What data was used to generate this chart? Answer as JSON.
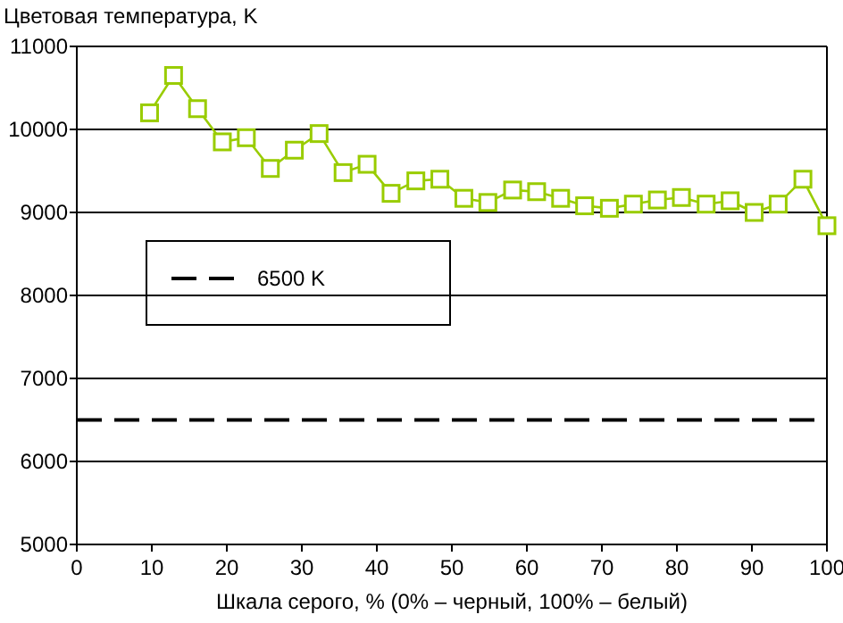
{
  "chart_data": {
    "type": "line",
    "ylabel": "Цветовая температура, K",
    "xlabel": "Шкала серого, % (0% – черный, 100% – белый)",
    "x": [
      9.7,
      12.9,
      16.1,
      19.4,
      22.6,
      25.8,
      29.0,
      32.3,
      35.5,
      38.7,
      41.9,
      45.2,
      48.4,
      51.6,
      54.8,
      58.1,
      61.3,
      64.5,
      67.7,
      71.0,
      74.2,
      77.4,
      80.6,
      83.9,
      87.1,
      90.3,
      93.5,
      96.8,
      100
    ],
    "series": [
      {
        "color": "#99cc00",
        "values": [
          10200,
          10650,
          10250,
          9850,
          9900,
          9530,
          9750,
          9950,
          9480,
          9580,
          9230,
          9380,
          9400,
          9170,
          9120,
          9270,
          9250,
          9170,
          9080,
          9050,
          9100,
          9150,
          9180,
          9100,
          9140,
          9000,
          9100,
          9400,
          8840
        ]
      }
    ],
    "xlim": [
      0,
      100
    ],
    "xticks": [
      0,
      10,
      20,
      30,
      40,
      50,
      60,
      70,
      80,
      90,
      100
    ],
    "ylim": [
      5000,
      11000
    ],
    "yticks": [
      5000,
      6000,
      7000,
      8000,
      9000,
      10000,
      11000
    ],
    "ref_lines": [
      {
        "axis": "y",
        "value": 6500,
        "label": "6500 K",
        "color": "#000000",
        "line_style": "dashed"
      }
    ],
    "grid": "y",
    "legend": "left",
    "marker": "square",
    "line_style": "solid"
  }
}
